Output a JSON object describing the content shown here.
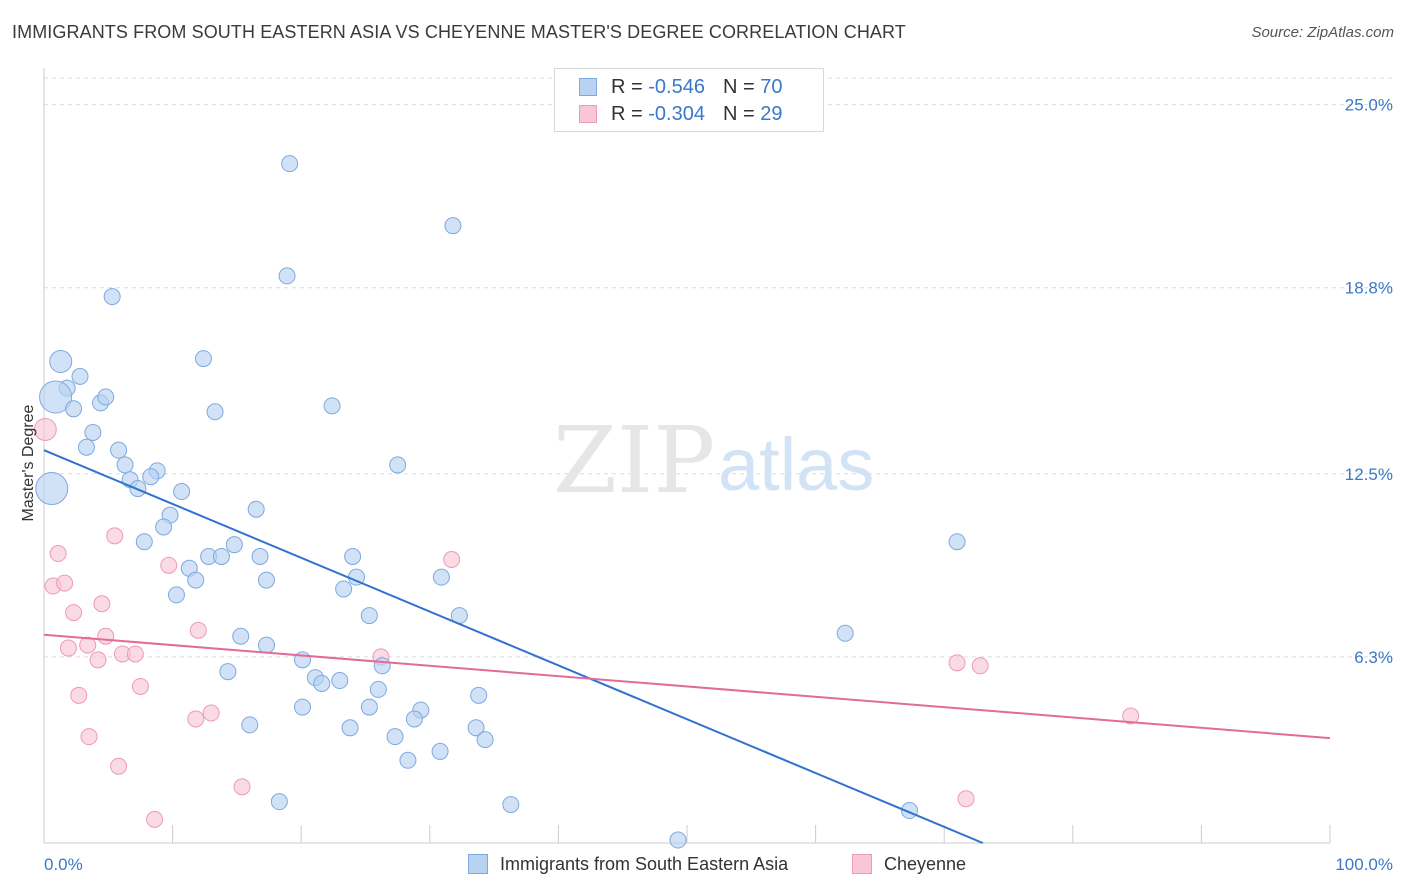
{
  "title": "IMMIGRANTS FROM SOUTH EASTERN ASIA VS CHEYENNE MASTER'S DEGREE CORRELATION CHART",
  "source": "Source: ZipAtlas.com",
  "watermark": {
    "zip": "ZIP",
    "atlas": "atlas"
  },
  "legend": {
    "rows": [
      {
        "r_label": "R = ",
        "r_value": "-0.546",
        "n_label": "N = ",
        "n_value": "70"
      },
      {
        "r_label": "R = ",
        "r_value": "-0.304",
        "n_label": "N = ",
        "n_value": "29"
      }
    ]
  },
  "colors": {
    "blue_fill": "#b8d3f2",
    "blue_stroke": "#7ea9df",
    "blue_line": "#2f72d0",
    "pink_fill": "#f8c6d6",
    "pink_stroke": "#ee9ab5",
    "pink_line": "#e26b98",
    "axis_text": "#3a78c9",
    "grid": "#dcdcdc"
  },
  "chart_data": {
    "type": "scatter",
    "title": "IMMIGRANTS FROM SOUTH EASTERN ASIA VS CHEYENNE MASTER'S DEGREE CORRELATION CHART",
    "xlabel": "",
    "ylabel": "Master's Degree",
    "xlim": [
      0,
      100
    ],
    "ylim": [
      0,
      25.9
    ],
    "x_tick_labels": [
      "0.0%",
      "100.0%"
    ],
    "y_ticks": [
      6.3,
      12.5,
      18.8,
      25.0
    ],
    "y_tick_labels": [
      "6.3%",
      "12.5%",
      "18.8%",
      "25.0%"
    ],
    "grid": true,
    "legend_placement": "top-center and bottom",
    "series": [
      {
        "name": "Immigrants from South Eastern Asia",
        "color": "#b8d3f2",
        "points": [
          [
            19.1,
            23.0,
            1
          ],
          [
            31.8,
            20.9,
            1
          ],
          [
            18.9,
            19.2,
            1
          ],
          [
            5.3,
            18.5,
            1
          ],
          [
            1.3,
            16.3,
            2
          ],
          [
            12.4,
            16.4,
            1
          ],
          [
            2.8,
            15.8,
            1
          ],
          [
            1.8,
            15.4,
            1
          ],
          [
            0.9,
            15.1,
            3
          ],
          [
            4.4,
            14.9,
            1
          ],
          [
            4.8,
            15.1,
            1
          ],
          [
            2.3,
            14.7,
            1
          ],
          [
            13.3,
            14.6,
            1
          ],
          [
            22.4,
            14.8,
            1
          ],
          [
            3.8,
            13.9,
            1
          ],
          [
            3.3,
            13.4,
            1
          ],
          [
            5.8,
            13.3,
            1
          ],
          [
            6.3,
            12.8,
            1
          ],
          [
            8.8,
            12.6,
            1
          ],
          [
            6.7,
            12.3,
            1
          ],
          [
            8.3,
            12.4,
            1
          ],
          [
            7.3,
            12.0,
            1
          ],
          [
            0.6,
            12.0,
            3
          ],
          [
            10.7,
            11.9,
            1
          ],
          [
            27.5,
            12.8,
            1
          ],
          [
            16.5,
            11.3,
            1
          ],
          [
            9.8,
            11.1,
            1
          ],
          [
            9.3,
            10.7,
            1
          ],
          [
            7.8,
            10.2,
            1
          ],
          [
            14.8,
            10.1,
            1
          ],
          [
            12.8,
            9.7,
            1
          ],
          [
            13.8,
            9.7,
            1
          ],
          [
            16.8,
            9.7,
            1
          ],
          [
            11.3,
            9.3,
            1
          ],
          [
            24.0,
            9.7,
            1
          ],
          [
            11.8,
            8.9,
            1
          ],
          [
            17.3,
            8.9,
            1
          ],
          [
            24.3,
            9.0,
            1
          ],
          [
            23.3,
            8.6,
            1
          ],
          [
            30.9,
            9.0,
            1
          ],
          [
            10.3,
            8.4,
            1
          ],
          [
            25.3,
            7.7,
            1
          ],
          [
            32.3,
            7.7,
            1
          ],
          [
            15.3,
            7.0,
            1
          ],
          [
            17.3,
            6.7,
            1
          ],
          [
            20.1,
            6.2,
            1
          ],
          [
            26.3,
            6.0,
            1
          ],
          [
            14.3,
            5.8,
            1
          ],
          [
            21.1,
            5.6,
            1
          ],
          [
            21.6,
            5.4,
            1
          ],
          [
            23.0,
            5.5,
            1
          ],
          [
            26.0,
            5.2,
            1
          ],
          [
            33.8,
            5.0,
            1
          ],
          [
            20.1,
            4.6,
            1
          ],
          [
            25.3,
            4.6,
            1
          ],
          [
            29.3,
            4.5,
            1
          ],
          [
            28.8,
            4.2,
            1
          ],
          [
            16.0,
            4.0,
            1
          ],
          [
            23.8,
            3.9,
            1
          ],
          [
            33.6,
            3.9,
            1
          ],
          [
            27.3,
            3.6,
            1
          ],
          [
            34.3,
            3.5,
            1
          ],
          [
            30.8,
            3.1,
            1
          ],
          [
            28.3,
            2.8,
            1
          ],
          [
            18.3,
            1.4,
            1
          ],
          [
            36.3,
            1.3,
            1
          ],
          [
            71.0,
            10.2,
            1
          ],
          [
            62.3,
            7.1,
            1
          ],
          [
            67.3,
            1.1,
            1
          ],
          [
            49.3,
            0.1,
            1
          ]
        ]
      },
      {
        "name": "Cheyenne",
        "color": "#f8c6d6",
        "points": [
          [
            0.1,
            14.0,
            2
          ],
          [
            5.5,
            10.4,
            1
          ],
          [
            1.1,
            9.8,
            1
          ],
          [
            31.7,
            9.6,
            1
          ],
          [
            9.7,
            9.4,
            1
          ],
          [
            0.7,
            8.7,
            1
          ],
          [
            1.6,
            8.8,
            1
          ],
          [
            4.5,
            8.1,
            1
          ],
          [
            2.3,
            7.8,
            1
          ],
          [
            12.0,
            7.2,
            1
          ],
          [
            4.8,
            7.0,
            1
          ],
          [
            3.4,
            6.7,
            1
          ],
          [
            1.9,
            6.6,
            1
          ],
          [
            6.1,
            6.4,
            1
          ],
          [
            7.1,
            6.4,
            1
          ],
          [
            26.2,
            6.3,
            1
          ],
          [
            4.2,
            6.2,
            1
          ],
          [
            7.5,
            5.3,
            1
          ],
          [
            2.7,
            5.0,
            1
          ],
          [
            13.0,
            4.4,
            1
          ],
          [
            11.8,
            4.2,
            1
          ],
          [
            3.5,
            3.6,
            1
          ],
          [
            5.8,
            2.6,
            1
          ],
          [
            15.4,
            1.9,
            1
          ],
          [
            8.6,
            0.8,
            1
          ],
          [
            71.0,
            6.1,
            1
          ],
          [
            72.8,
            6.0,
            1
          ],
          [
            84.5,
            4.3,
            1
          ],
          [
            71.7,
            1.5,
            1
          ]
        ]
      }
    ],
    "trendlines": [
      {
        "series": "Immigrants from South Eastern Asia",
        "from": [
          0,
          13.3
        ],
        "to": [
          73.0,
          0.0
        ]
      },
      {
        "series": "Cheyenne",
        "from": [
          0,
          7.05
        ],
        "to": [
          100,
          3.55
        ]
      }
    ]
  },
  "bottom_legend": [
    {
      "label": "Immigrants from South Eastern Asia"
    },
    {
      "label": "Cheyenne"
    }
  ]
}
